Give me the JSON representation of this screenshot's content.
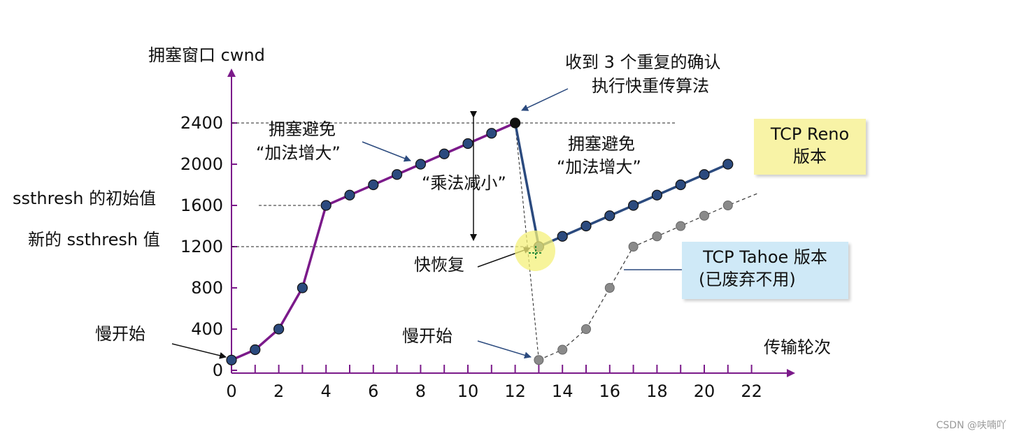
{
  "chart_data": {
    "type": "line",
    "ylabel": "拥塞窗口 cwnd",
    "xlabel": "传输轮次",
    "x_ticks": [
      "0",
      "2",
      "4",
      "6",
      "8",
      "10",
      "12",
      "14",
      "16",
      "18",
      "20",
      "22"
    ],
    "y_ticks": [
      "0",
      "400",
      "800",
      "1200",
      "1600",
      "2000",
      "2400"
    ],
    "xlim": [
      0,
      23
    ],
    "ylim": [
      0,
      2600
    ],
    "series": [
      {
        "name": "reno_main",
        "color": "#7b1a8a",
        "points": [
          [
            0,
            100
          ],
          [
            1,
            200
          ],
          [
            2,
            400
          ],
          [
            3,
            800
          ],
          [
            4,
            1600
          ],
          [
            5,
            1700
          ],
          [
            6,
            1800
          ],
          [
            7,
            1900
          ],
          [
            8,
            2000
          ],
          [
            9,
            2100
          ],
          [
            10,
            2200
          ],
          [
            11,
            2300
          ],
          [
            12,
            2400
          ]
        ]
      },
      {
        "name": "reno_after",
        "color": "#2b4a7e",
        "points": [
          [
            13,
            1200
          ],
          [
            14,
            1300
          ],
          [
            15,
            1400
          ],
          [
            16,
            1500
          ],
          [
            17,
            1600
          ],
          [
            18,
            1700
          ],
          [
            19,
            1800
          ],
          [
            20,
            1900
          ],
          [
            21,
            2000
          ]
        ]
      },
      {
        "name": "tahoe",
        "color": "#8a8a8a",
        "points": [
          [
            13,
            100
          ],
          [
            14,
            200
          ],
          [
            15,
            400
          ],
          [
            16,
            800
          ],
          [
            17,
            1200
          ],
          [
            18,
            1300
          ],
          [
            19,
            1400
          ],
          [
            20,
            1500
          ],
          [
            21,
            1600
          ]
        ]
      }
    ],
    "reference_lines": {
      "ssthresh_initial": 1600,
      "ssthresh_new": 1200,
      "peak": 2400
    }
  },
  "annotations": {
    "ssthresh_initial": "ssthresh 的初始值",
    "ssthresh_new": "新的 ssthresh 值",
    "slow_start_1": "慢开始",
    "slow_start_2": "慢开始",
    "ca_1_line1": "拥塞避免",
    "ca_1_line2": "“加法增大”",
    "ca_2_line1": "拥塞避免",
    "ca_2_line2": "“加法增大”",
    "mult_decrease": "“乘法减小”",
    "fast_recovery": "快恢复",
    "dup_ack_line1": "收到 3 个重复的确认",
    "dup_ack_line2": "执行快重传算法"
  },
  "legend": {
    "reno_line1": "TCP Reno",
    "reno_line2": "版本",
    "tahoe_line1": "TCP Tahoe 版本",
    "tahoe_line2": "(已废弃不用)"
  },
  "watermark": "CSDN @呋喃吖"
}
